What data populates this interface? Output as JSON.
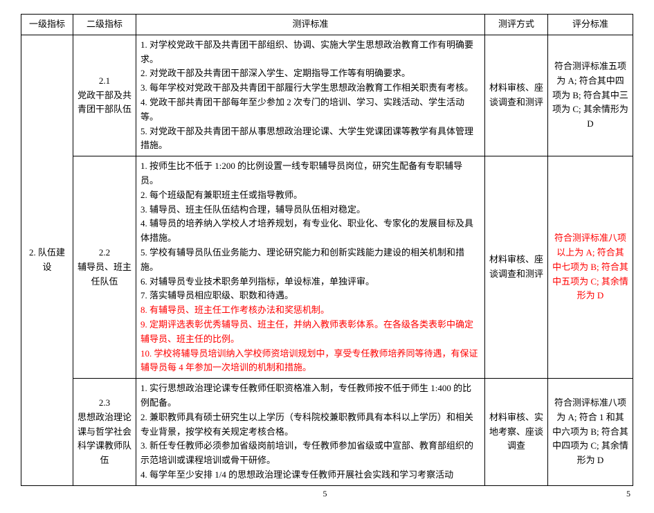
{
  "headers": {
    "l1": "一级指标",
    "l2": "二级指标",
    "standard": "测评标准",
    "method": "测评方式",
    "score": "评分标准"
  },
  "level1": "2. 队伍建设",
  "rows": [
    {
      "l2": "2.1\n党政干部及共青团干部队伍",
      "standard": "1. 对学校党政干部及共青团干部组织、协调、实施大学生思想政治教育工作有明确要求。\n2. 对党政干部及共青团干部深入学生、定期指导工作等有明确要求。\n3. 每年学校对党政干部及共青团干部履行大学生思想政治教育工作相关职责有考核。\n4. 党政干部共青团干部每年至少参加 2 次专门的培训、学习、实践活动、学生活动等。\n5. 对党政干部及共青团干部从事思想政治理论课、大学生党课团课等教学有具体管理措施。",
      "method": "材料审核、座谈调查和测评",
      "score": "符合测评标准五项为 A; 符合其中四项为 B; 符合其中三项为 C; 其余情形为 D"
    },
    {
      "l2": "2.2\n辅导员、班主任队伍",
      "standard_pre": "1. 按师生比不低于 1:200 的比例设置一线专职辅导员岗位，研究生配备有专职辅导员。\n2. 每个班级配有兼职班主任或指导教师。\n3. 辅导员、班主任队伍结构合理，辅导员队伍相对稳定。\n4. 辅导员的培养纳入学校人才培养规划，有专业化、职业化、专家化的发展目标及具体措施。\n5. 学校有辅导员队伍业务能力、理论研究能力和创新实践能力建设的相关机制和措施。\n6. 对辅导员专业技术职务单列指标，单设标准，单独评审。\n7. 落实辅导员相应职级、职数和待遇。",
      "standard_red": "8. 有辅导员、班主任工作考核办法和奖惩机制。\n9. 定期评选表彰优秀辅导员、班主任，并纳入教师表彰体系。在各级各类表彰中确定辅导员、班主任的比例。\n10. 学校将辅导员培训纳入学校师资培训规划中，享受专任教师培养同等待遇，有保证辅导员每 4 年参加一次培训的机制和措施。",
      "method": "材料审核、座谈调查和测评",
      "score_red": "符合测评标准八项以上为 A; 符合其中七项为 B; 符合其中五项为 C; 其余情形为 D"
    },
    {
      "l2": "2.3\n思想政治理论课与哲学社会科学课教师队伍",
      "standard": "1. 实行思想政治理论课专任教师任职资格准入制，专任教师按不低于师生 1:400 的比例配备。\n2. 兼职教师具有硕士研究生以上学历（专科院校兼职教师具有本科以上学历）和相关专业背景，按学校有关规定考核合格。\n3. 新任专任教师必须参加省级岗前培训，专任教师参加省级或中宣部、教育部组织的示范培训或课程培训或骨干研修。\n4. 每学年至少安排 1/4 的思想政治理论课专任教师开展社会实践和学习考察活动",
      "method": "材料审核、实地考察、座谈调查",
      "score": "符合测评标准八项为 A; 符合 1 和其中六项为 B; 符合其中四项为 C; 其余情形为 D"
    }
  ],
  "footer": {
    "pageLeft": "5",
    "pageRight": "5"
  }
}
